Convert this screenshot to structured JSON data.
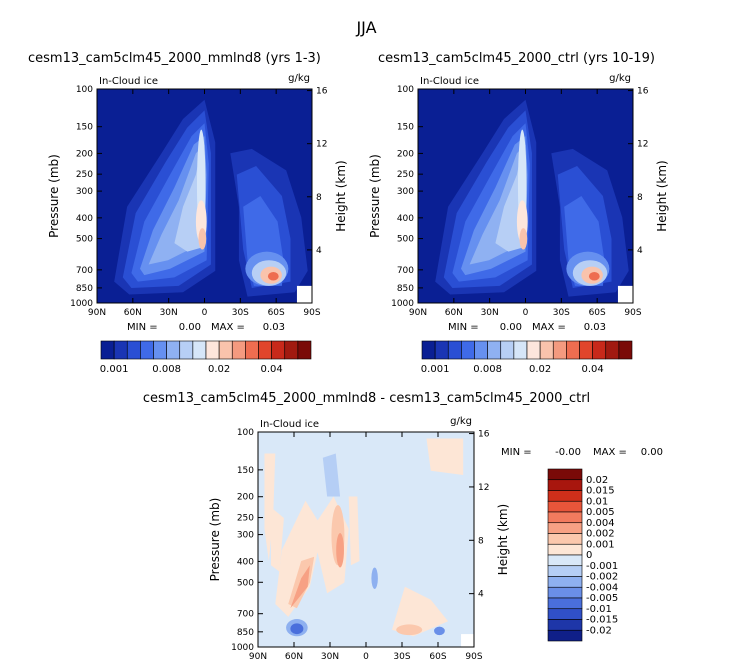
{
  "main_title": "JJA",
  "chart_data": [
    {
      "id": "top-left",
      "type": "contour",
      "title": "cesm13_cam5clm45_2000_mmlnd8 (yrs 1-3)",
      "panel_label": "In-Cloud ice",
      "units": "g/kg",
      "xlabel": "",
      "ylabel": "Pressure (mb)",
      "y2label": "Height (km)",
      "x_ticks": [
        "90N",
        "60N",
        "30N",
        "0",
        "30S",
        "60S",
        "90S"
      ],
      "y_ticks": [
        100,
        150,
        200,
        250,
        300,
        400,
        500,
        700,
        850,
        1000
      ],
      "y2_ticks": [
        4,
        8,
        12,
        16
      ],
      "min_label": "MIN =",
      "min_value": "0.00",
      "max_label": "MAX =",
      "max_value": "0.03",
      "colorbar_labels": [
        "0.001",
        "0.008",
        "0.02",
        "0.04"
      ]
    },
    {
      "id": "top-right",
      "type": "contour",
      "title": "cesm13_cam5clm45_2000_ctrl (yrs 10-19)",
      "panel_label": "In-Cloud ice",
      "units": "g/kg",
      "xlabel": "",
      "ylabel": "Pressure (mb)",
      "y2label": "Height (km)",
      "x_ticks": [
        "90N",
        "60N",
        "30N",
        "0",
        "30S",
        "60S",
        "90S"
      ],
      "y_ticks": [
        100,
        150,
        200,
        250,
        300,
        400,
        500,
        700,
        850,
        1000
      ],
      "y2_ticks": [
        4,
        8,
        12,
        16
      ],
      "min_label": "MIN =",
      "min_value": "0.00",
      "max_label": "MAX =",
      "max_value": "0.03",
      "colorbar_labels": [
        "0.001",
        "0.008",
        "0.02",
        "0.04"
      ]
    },
    {
      "id": "bottom",
      "type": "contour",
      "title": "cesm13_cam5clm45_2000_mmlnd8 - cesm13_cam5clm45_2000_ctrl",
      "panel_label": "In-Cloud ice",
      "units": "g/kg",
      "xlabel": "",
      "ylabel": "Pressure (mb)",
      "y2label": "Height (km)",
      "x_ticks": [
        "90N",
        "60N",
        "30N",
        "0",
        "30S",
        "60S",
        "90S"
      ],
      "y_ticks": [
        100,
        150,
        200,
        250,
        300,
        400,
        500,
        700,
        850,
        1000
      ],
      "y2_ticks": [
        4,
        8,
        12,
        16
      ],
      "min_label": "MIN =",
      "min_value": "-0.00",
      "max_label": "MAX =",
      "max_value": "0.00",
      "colorbar_labels": [
        "0.02",
        "0.015",
        "0.01",
        "0.005",
        "0.004",
        "0.002",
        "0.001",
        "0",
        "-0.001",
        "-0.002",
        "-0.004",
        "-0.005",
        "-0.01",
        "-0.015",
        "-0.02"
      ]
    }
  ],
  "colors": {
    "seq": [
      "#0a1f94",
      "#1a35b4",
      "#2a4fd4",
      "#3f6ae8",
      "#6690f0",
      "#8fb1f2",
      "#b7cff5",
      "#d6e6f8",
      "#fde6dc",
      "#f9c3ac",
      "#f49a7f",
      "#ee6d50",
      "#e0452b",
      "#c8291a",
      "#a11a10",
      "#7a0a08"
    ],
    "div": [
      "#7a0a08",
      "#a8160e",
      "#cf2f1a",
      "#e8553a",
      "#f27b5e",
      "#f7a184",
      "#fbc8ad",
      "#fde6d6",
      "#d9e8f8",
      "#b5cef5",
      "#8eb0f0",
      "#6a8fe8",
      "#4a6fdc",
      "#3050c8",
      "#1e36a8",
      "#0f1f88"
    ],
    "background_low": "#0a1f94",
    "diff_background": "#d9e8f8"
  }
}
